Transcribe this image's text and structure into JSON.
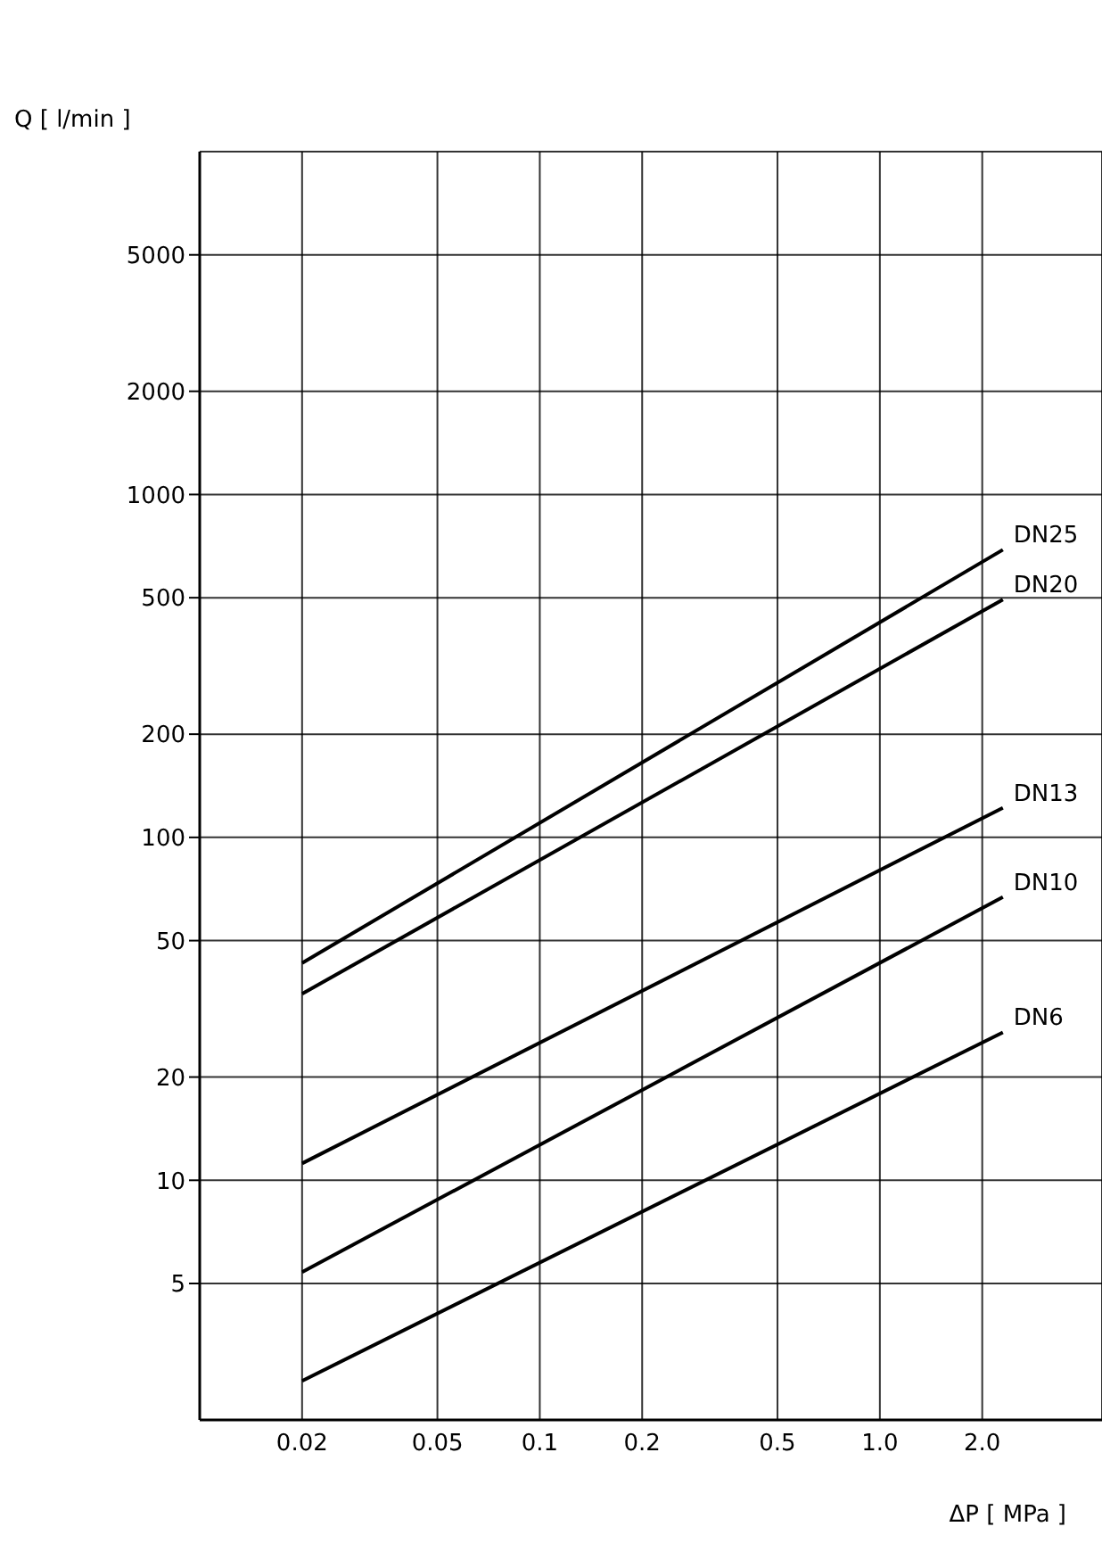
{
  "chart_data": {
    "type": "line",
    "xlabel": "ΔP [ MPa ]",
    "ylabel": "Q [ l/min ]",
    "log": "xy",
    "grid": true,
    "marker": "none",
    "line_style": "solid",
    "legend": false,
    "xlim": [
      0.01,
      4.5
    ],
    "ylim": [
      2,
      10000
    ],
    "x": [
      0.02,
      2.3
    ],
    "xticks": [
      0.02,
      0.05,
      0.1,
      0.2,
      0.5,
      {
        "value": 1,
        "label": "1.0"
      },
      {
        "value": 2,
        "label": "2.0"
      }
    ],
    "yticks": [
      5,
      10,
      20,
      50,
      100,
      200,
      500,
      1000,
      2000,
      5000
    ],
    "series": [
      {
        "name": "DN25",
        "color": "#000000",
        "values": [
          43,
          690
        ]
      },
      {
        "name": "DN20",
        "color": "#000000",
        "values": [
          35,
          494
        ]
      },
      {
        "name": "DN13",
        "color": "#000000",
        "values": [
          11.2,
          122
        ]
      },
      {
        "name": "DN10",
        "color": "#000000",
        "values": [
          5.4,
          67
        ]
      },
      {
        "name": "DN6",
        "color": "#000000",
        "values": [
          2.6,
          27
        ]
      }
    ]
  }
}
